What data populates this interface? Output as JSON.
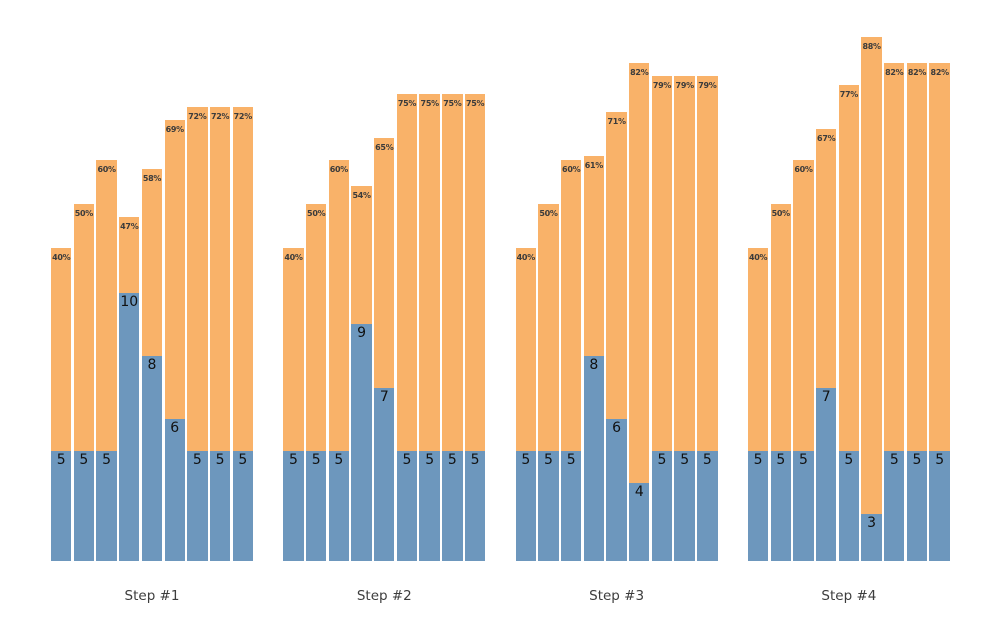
{
  "chart_data": {
    "type": "bar",
    "subtype": "stacked-grouped",
    "legend_position": "none",
    "grid": false,
    "axes_visible": false,
    "value_axis_unit": "percent",
    "colors": {
      "top_segment": "#F9B269",
      "bottom_segment": "#6D97BD",
      "pct_label_text": "#3B3B3B",
      "count_label_text": "#111111",
      "step_label_text": "#3D3D3D",
      "background": "#FFFFFF"
    },
    "groups": [
      {
        "label": "Step #1",
        "bars": [
          {
            "pct": 40,
            "pct_label": "40%",
            "count": 5,
            "count_label": "5"
          },
          {
            "pct": 50,
            "pct_label": "50%",
            "count": 5,
            "count_label": "5"
          },
          {
            "pct": 60,
            "pct_label": "60%",
            "count": 5,
            "count_label": "5"
          },
          {
            "pct": 47,
            "pct_label": "47%",
            "count": 10,
            "count_label": "10"
          },
          {
            "pct": 58,
            "pct_label": "58%",
            "count": 8,
            "count_label": "8"
          },
          {
            "pct": 69,
            "pct_label": "69%",
            "count": 6,
            "count_label": "6"
          },
          {
            "pct": 72,
            "pct_label": "72%",
            "count": 5,
            "count_label": "5"
          },
          {
            "pct": 72,
            "pct_label": "72%",
            "count": 5,
            "count_label": "5"
          },
          {
            "pct": 72,
            "pct_label": "72%",
            "count": 5,
            "count_label": "5"
          }
        ]
      },
      {
        "label": "Step #2",
        "bars": [
          {
            "pct": 40,
            "pct_label": "40%",
            "count": 5,
            "count_label": "5"
          },
          {
            "pct": 50,
            "pct_label": "50%",
            "count": 5,
            "count_label": "5"
          },
          {
            "pct": 60,
            "pct_label": "60%",
            "count": 5,
            "count_label": "5"
          },
          {
            "pct": 54,
            "pct_label": "54%",
            "count": 9,
            "count_label": "9"
          },
          {
            "pct": 65,
            "pct_label": "65%",
            "count": 7,
            "count_label": "7"
          },
          {
            "pct": 75,
            "pct_label": "75%",
            "count": 5,
            "count_label": "5"
          },
          {
            "pct": 75,
            "pct_label": "75%",
            "count": 5,
            "count_label": "5"
          },
          {
            "pct": 75,
            "pct_label": "75%",
            "count": 5,
            "count_label": "5"
          },
          {
            "pct": 75,
            "pct_label": "75%",
            "count": 5,
            "count_label": "5"
          }
        ]
      },
      {
        "label": "Step #3",
        "bars": [
          {
            "pct": 40,
            "pct_label": "40%",
            "count": 5,
            "count_label": "5"
          },
          {
            "pct": 50,
            "pct_label": "50%",
            "count": 5,
            "count_label": "5"
          },
          {
            "pct": 60,
            "pct_label": "60%",
            "count": 5,
            "count_label": "5"
          },
          {
            "pct": 61,
            "pct_label": "61%",
            "count": 8,
            "count_label": "8"
          },
          {
            "pct": 71,
            "pct_label": "71%",
            "count": 6,
            "count_label": "6"
          },
          {
            "pct": 82,
            "pct_label": "82%",
            "count": 4,
            "count_label": "4"
          },
          {
            "pct": 79,
            "pct_label": "79%",
            "count": 5,
            "count_label": "5"
          },
          {
            "pct": 79,
            "pct_label": "79%",
            "count": 5,
            "count_label": "5"
          },
          {
            "pct": 79,
            "pct_label": "79%",
            "count": 5,
            "count_label": "5"
          }
        ]
      },
      {
        "label": "Step #4",
        "bars": [
          {
            "pct": 40,
            "pct_label": "40%",
            "count": 5,
            "count_label": "5"
          },
          {
            "pct": 50,
            "pct_label": "50%",
            "count": 5,
            "count_label": "5"
          },
          {
            "pct": 60,
            "pct_label": "60%",
            "count": 5,
            "count_label": "5"
          },
          {
            "pct": 67,
            "pct_label": "67%",
            "count": 7,
            "count_label": "7"
          },
          {
            "pct": 77,
            "pct_label": "77%",
            "count": 5,
            "count_label": "5"
          },
          {
            "pct": 88,
            "pct_label": "88%",
            "count": 3,
            "count_label": "3"
          },
          {
            "pct": 82,
            "pct_label": "82%",
            "count": 5,
            "count_label": "5"
          },
          {
            "pct": 82,
            "pct_label": "82%",
            "count": 5,
            "count_label": "5"
          },
          {
            "pct": 82,
            "pct_label": "82%",
            "count": 5,
            "count_label": "5"
          }
        ]
      }
    ]
  }
}
